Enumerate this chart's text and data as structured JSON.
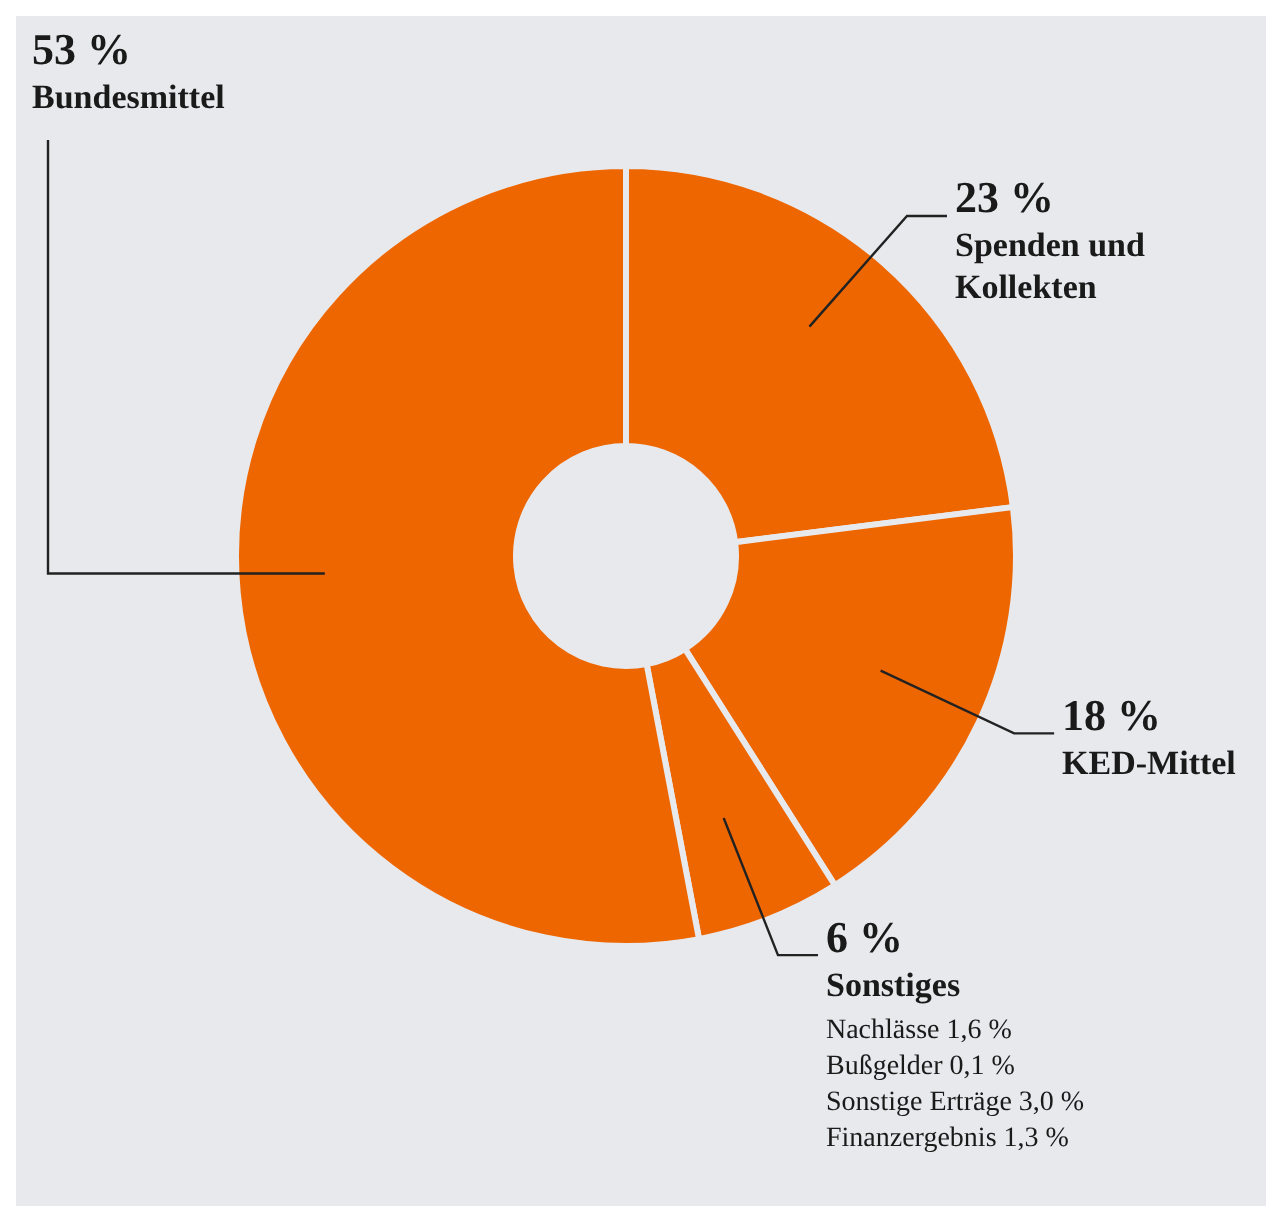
{
  "chart_data": {
    "type": "donut",
    "categories": [
      "Spenden und Kollekten",
      "KED-Mittel",
      "Sonstiges",
      "Bundesmittel"
    ],
    "values": [
      23,
      18,
      6,
      53
    ],
    "value_labels": [
      "23 %",
      "18 %",
      "6 %",
      "53 %"
    ],
    "colors": [
      "#ee6600",
      "#ee6600",
      "#ee6600",
      "#ee6600"
    ],
    "legend": false,
    "annotations": [
      "Nachlässe 1,6 %",
      "Bußgelder 0,1 %",
      "Sonstige Erträge 3,0 %",
      "Finanzergebnis 1,3 %"
    ]
  }
}
